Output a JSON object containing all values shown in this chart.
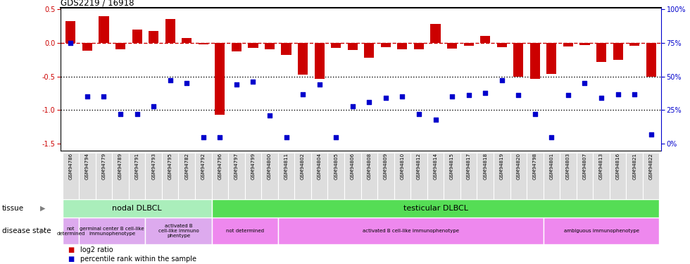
{
  "title": "GDS2219 / 16918",
  "samples": [
    "GSM94786",
    "GSM94794",
    "GSM94779",
    "GSM94789",
    "GSM94791",
    "GSM94793",
    "GSM94795",
    "GSM94782",
    "GSM94792",
    "GSM94796",
    "GSM94797",
    "GSM94799",
    "GSM94800",
    "GSM94811",
    "GSM94802",
    "GSM94804",
    "GSM94805",
    "GSM94806",
    "GSM94808",
    "GSM94809",
    "GSM94810",
    "GSM94812",
    "GSM94814",
    "GSM94815",
    "GSM94817",
    "GSM94818",
    "GSM94819",
    "GSM94820",
    "GSM94798",
    "GSM94801",
    "GSM94803",
    "GSM94807",
    "GSM94813",
    "GSM94816",
    "GSM94821",
    "GSM94822"
  ],
  "log2_ratio": [
    0.32,
    -0.12,
    0.4,
    -0.1,
    0.2,
    0.18,
    0.35,
    0.07,
    -0.02,
    -1.07,
    -0.13,
    -0.07,
    -0.09,
    -0.18,
    -0.47,
    -0.53,
    -0.07,
    -0.11,
    -0.22,
    -0.06,
    -0.1,
    -0.1,
    0.28,
    -0.08,
    -0.04,
    0.1,
    -0.06,
    -0.5,
    -0.53,
    -0.46,
    -0.05,
    -0.03,
    -0.28,
    -0.25,
    -0.04,
    -0.5
  ],
  "percentile_rank_pct": [
    75,
    35,
    35,
    22,
    22,
    28,
    47,
    45,
    5,
    5,
    44,
    46,
    21,
    5,
    37,
    44,
    5,
    28,
    31,
    34,
    35,
    22,
    18,
    35,
    36,
    38,
    47,
    36,
    22,
    5,
    36,
    45,
    34,
    37,
    37,
    7
  ],
  "bar_color": "#cc0000",
  "dot_color": "#0000cc",
  "ref_line_color": "#cc0000",
  "dotted_line_color": "#000000",
  "ylim": [
    -1.6,
    0.52
  ],
  "yticks_left": [
    0.5,
    0.0,
    -0.5,
    -1.0,
    -1.5
  ],
  "yticks_right_pct": [
    100,
    75,
    50,
    25,
    0
  ],
  "tissue_groups": [
    {
      "label": "nodal DLBCL",
      "start": 0,
      "end": 9,
      "color": "#aaeebb"
    },
    {
      "label": "testicular DLBCL",
      "start": 9,
      "end": 36,
      "color": "#55dd55"
    }
  ],
  "disease_groups": [
    {
      "label": "not\ndetermined",
      "start": 0,
      "end": 1,
      "color": "#ddaaee"
    },
    {
      "label": "germinal center B cell-like\nimmunophenotype",
      "start": 1,
      "end": 5,
      "color": "#ddaaee"
    },
    {
      "label": "activated B\ncell-like immuno\nphentype",
      "start": 5,
      "end": 9,
      "color": "#ddaaee"
    },
    {
      "label": "not determined",
      "start": 9,
      "end": 13,
      "color": "#ee88ee"
    },
    {
      "label": "activated B cell-like immunophenotype",
      "start": 13,
      "end": 29,
      "color": "#ee88ee"
    },
    {
      "label": "ambiguous immunophenotype",
      "start": 29,
      "end": 36,
      "color": "#ee88ee"
    }
  ],
  "tissue_label": "tissue",
  "disease_label": "disease state",
  "legend_bar_label": "log2 ratio",
  "legend_dot_label": "percentile rank within the sample",
  "n_samples": 36,
  "xlim_left": -0.6,
  "xlim_right": 35.6
}
